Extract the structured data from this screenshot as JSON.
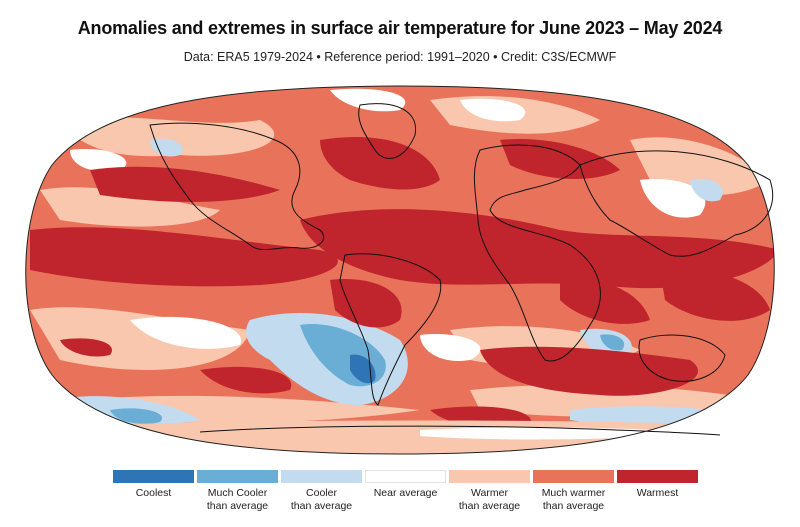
{
  "title": "Anomalies and extremes in surface air temperature for June 2023 – May 2024",
  "subtitle": "Data: ERA5 1979-2024 • Reference period: 1991–2020 • Credit: C3S/ECMWF",
  "legend": [
    {
      "line1": "Coolest",
      "line2": "",
      "color": "#2f74b5"
    },
    {
      "line1": "Much Cooler",
      "line2": "than average",
      "color": "#6aaed6"
    },
    {
      "line1": "Cooler",
      "line2": "than average",
      "color": "#c2dbee"
    },
    {
      "line1": "Near average",
      "line2": "",
      "color": "#ffffff"
    },
    {
      "line1": "Warmer",
      "line2": "than average",
      "color": "#f8c7ad"
    },
    {
      "line1": "Much warmer",
      "line2": "than average",
      "color": "#e8735a"
    },
    {
      "line1": "Warmest",
      "line2": "",
      "color": "#c0242d"
    }
  ]
}
